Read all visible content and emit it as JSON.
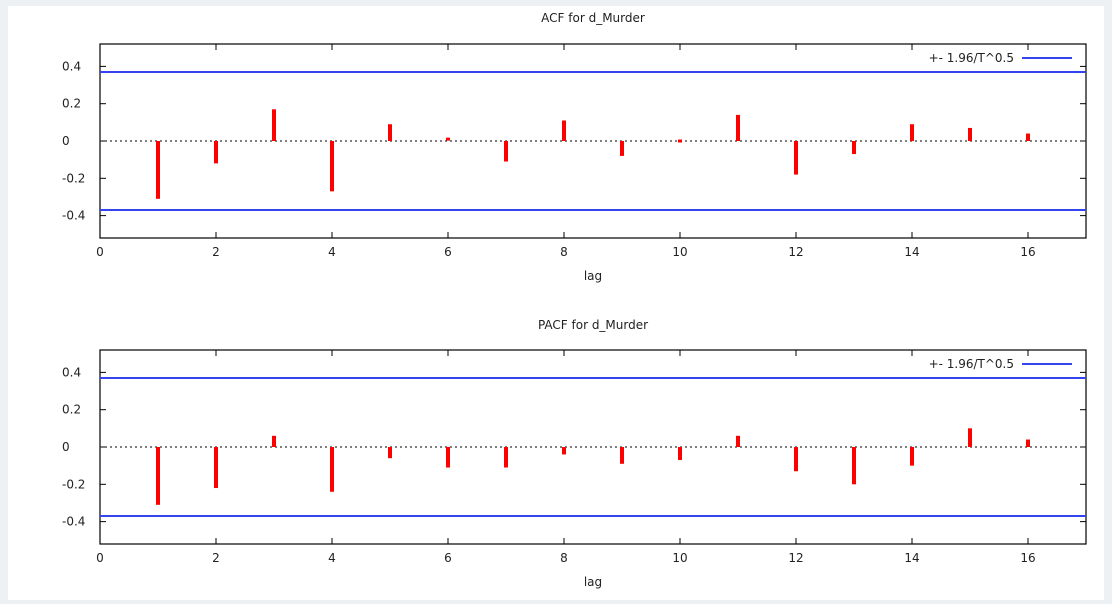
{
  "chart_data": [
    {
      "type": "bar",
      "title": "ACF for d_Murder",
      "xlabel": "lag",
      "ylabel": "",
      "xlim": [
        0,
        17
      ],
      "ylim": [
        -0.52,
        0.52
      ],
      "xticks": [
        "0",
        "2",
        "4",
        "6",
        "8",
        "10",
        "12",
        "14",
        "16"
      ],
      "yticks": [
        "0.4",
        "0.2",
        "0",
        "-0.2",
        "-0.4"
      ],
      "categories": [
        1,
        2,
        3,
        4,
        5,
        6,
        7,
        8,
        9,
        10,
        11,
        12,
        13,
        14,
        15,
        16
      ],
      "values": [
        -0.31,
        -0.12,
        0.17,
        -0.27,
        0.09,
        0.01,
        -0.11,
        0.11,
        -0.08,
        0.0,
        0.14,
        -0.18,
        -0.07,
        0.09,
        0.07,
        0.04
      ],
      "confidence_band": 0.37,
      "legend": {
        "label": "+- 1.96/T^0.5",
        "position": "top-right"
      },
      "grid": false,
      "colors": {
        "bars": "#ff0000",
        "band": "#3344ee",
        "zero_line": "#333333"
      }
    },
    {
      "type": "bar",
      "title": "PACF for d_Murder",
      "xlabel": "lag",
      "ylabel": "",
      "xlim": [
        0,
        17
      ],
      "ylim": [
        -0.52,
        0.52
      ],
      "xticks": [
        "0",
        "2",
        "4",
        "6",
        "8",
        "10",
        "12",
        "14",
        "16"
      ],
      "yticks": [
        "0.4",
        "0.2",
        "0",
        "-0.2",
        "-0.4"
      ],
      "categories": [
        1,
        2,
        3,
        4,
        5,
        6,
        7,
        8,
        9,
        10,
        11,
        12,
        13,
        14,
        15,
        16
      ],
      "values": [
        -0.31,
        -0.22,
        0.06,
        -0.24,
        -0.06,
        -0.11,
        -0.11,
        -0.04,
        -0.09,
        -0.07,
        0.06,
        -0.13,
        -0.2,
        -0.1,
        0.1,
        0.04
      ],
      "confidence_band": 0.37,
      "legend": {
        "label": "+- 1.96/T^0.5",
        "position": "top-right"
      },
      "grid": false,
      "colors": {
        "bars": "#ff0000",
        "band": "#3344ee",
        "zero_line": "#333333"
      }
    }
  ]
}
